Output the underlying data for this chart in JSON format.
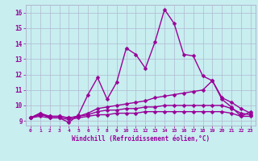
{
  "title": "",
  "xlabel": "Windchill (Refroidissement éolien,°C)",
  "bg_color": "#c8eef0",
  "line_color": "#990099",
  "grid_color": "#b0b8d0",
  "ylim": [
    8.7,
    16.5
  ],
  "xlim": [
    -0.5,
    23.5
  ],
  "yticks": [
    9,
    10,
    11,
    12,
    13,
    14,
    15,
    16
  ],
  "xticks": [
    0,
    1,
    2,
    3,
    4,
    5,
    6,
    7,
    8,
    9,
    10,
    11,
    12,
    13,
    14,
    15,
    16,
    17,
    18,
    19,
    20,
    21,
    22,
    23
  ],
  "series": [
    {
      "x": [
        0,
        1,
        2,
        3,
        4,
        5,
        6,
        7,
        8,
        9,
        10,
        11,
        12,
        13,
        14,
        15,
        16,
        17,
        18,
        19,
        20,
        21,
        22,
        23
      ],
      "y": [
        9.2,
        9.5,
        9.2,
        9.2,
        8.9,
        9.4,
        10.7,
        11.8,
        10.4,
        11.5,
        13.7,
        13.3,
        12.4,
        14.1,
        16.2,
        15.3,
        13.3,
        13.2,
        11.9,
        11.6,
        10.4,
        9.9,
        9.3,
        9.6
      ]
    },
    {
      "x": [
        0,
        1,
        2,
        3,
        4,
        5,
        6,
        7,
        8,
        9,
        10,
        11,
        12,
        13,
        14,
        15,
        16,
        17,
        18,
        19,
        20,
        21,
        22,
        23
      ],
      "y": [
        9.2,
        9.5,
        9.3,
        9.3,
        9.2,
        9.3,
        9.5,
        9.8,
        9.9,
        10.0,
        10.1,
        10.2,
        10.3,
        10.5,
        10.6,
        10.7,
        10.8,
        10.9,
        11.0,
        11.6,
        10.5,
        10.2,
        9.8,
        9.5
      ]
    },
    {
      "x": [
        0,
        1,
        2,
        3,
        4,
        5,
        6,
        7,
        8,
        9,
        10,
        11,
        12,
        13,
        14,
        15,
        16,
        17,
        18,
        19,
        20,
        21,
        22,
        23
      ],
      "y": [
        9.2,
        9.4,
        9.3,
        9.3,
        9.2,
        9.3,
        9.4,
        9.6,
        9.7,
        9.7,
        9.8,
        9.8,
        9.9,
        9.9,
        10.0,
        10.0,
        10.0,
        10.0,
        10.0,
        10.0,
        10.0,
        9.8,
        9.5,
        9.4
      ]
    },
    {
      "x": [
        0,
        1,
        2,
        3,
        4,
        5,
        6,
        7,
        8,
        9,
        10,
        11,
        12,
        13,
        14,
        15,
        16,
        17,
        18,
        19,
        20,
        21,
        22,
        23
      ],
      "y": [
        9.2,
        9.3,
        9.2,
        9.2,
        9.1,
        9.2,
        9.3,
        9.4,
        9.4,
        9.5,
        9.5,
        9.5,
        9.6,
        9.6,
        9.6,
        9.6,
        9.6,
        9.6,
        9.6,
        9.6,
        9.6,
        9.5,
        9.3,
        9.3
      ]
    }
  ],
  "markersize": 2.5,
  "linewidth": 1.0
}
